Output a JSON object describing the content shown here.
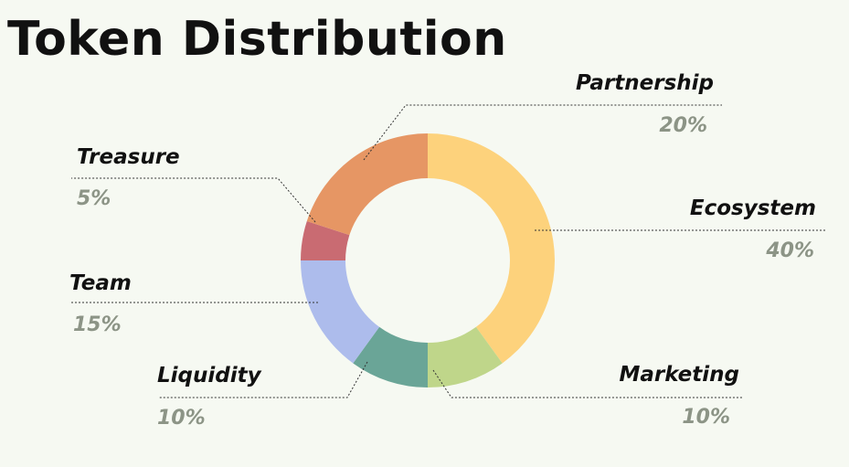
{
  "chart_data": {
    "type": "pie",
    "title": "Token Distribution",
    "slices": [
      {
        "label": "Ecosystem",
        "value": 40,
        "value_label": "40%",
        "color": "#fdd27c"
      },
      {
        "label": "Marketing",
        "value": 10,
        "value_label": "10%",
        "color": "#bfd68a"
      },
      {
        "label": "Liquidity",
        "value": 10,
        "value_label": "10%",
        "color": "#6aa597"
      },
      {
        "label": "Team",
        "value": 15,
        "value_label": "15%",
        "color": "#adbcec"
      },
      {
        "label": "Treasure",
        "value": 5,
        "value_label": "5%",
        "color": "#c96b72"
      },
      {
        "label": "Partnership",
        "value": 20,
        "value_label": "20%",
        "color": "#e69664"
      }
    ]
  }
}
